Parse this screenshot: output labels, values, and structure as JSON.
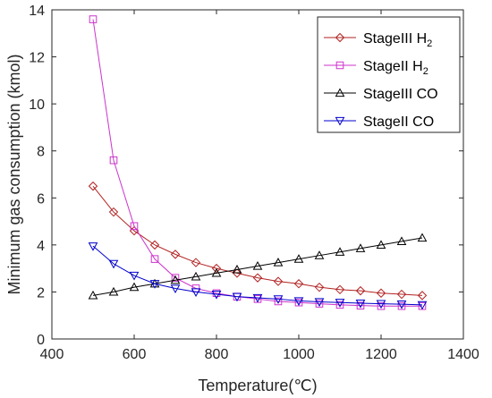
{
  "chart_data": {
    "type": "line",
    "xlabel": "Temperature(℃)",
    "ylabel": "Minimum gas consumption (kmol)",
    "xlim": [
      400,
      1400
    ],
    "ylim": [
      0,
      14
    ],
    "xticks": [
      400,
      600,
      800,
      1000,
      1200,
      1400
    ],
    "yticks": [
      0,
      2,
      4,
      6,
      8,
      10,
      12,
      14
    ],
    "grid": false,
    "legend_position": "top-right",
    "x": [
      500,
      550,
      600,
      650,
      700,
      750,
      800,
      850,
      900,
      950,
      1000,
      1050,
      1100,
      1150,
      1200,
      1250,
      1300
    ],
    "series": [
      {
        "name": "StageIII H",
        "name_subscript": "2",
        "color": "#b22222",
        "marker": "diamond",
        "values": [
          6.5,
          5.4,
          4.6,
          4.0,
          3.6,
          3.25,
          3.0,
          2.8,
          2.6,
          2.45,
          2.35,
          2.2,
          2.1,
          2.05,
          1.95,
          1.9,
          1.85
        ]
      },
      {
        "name": "StageII H",
        "name_subscript": "2",
        "color": "#cc33cc",
        "marker": "square",
        "values": [
          13.6,
          7.6,
          4.8,
          3.4,
          2.6,
          2.15,
          1.95,
          1.8,
          1.7,
          1.6,
          1.55,
          1.5,
          1.45,
          1.42,
          1.4,
          1.4,
          1.4
        ]
      },
      {
        "name": "StageIII CO",
        "color": "#000000",
        "marker": "triangle-up",
        "values": [
          1.85,
          2.0,
          2.2,
          2.35,
          2.5,
          2.65,
          2.8,
          2.95,
          3.1,
          3.25,
          3.4,
          3.55,
          3.7,
          3.85,
          4.0,
          4.15,
          4.3
        ]
      },
      {
        "name": "StageII CO",
        "color": "#0000cc",
        "marker": "triangle-down",
        "values": [
          3.95,
          3.2,
          2.7,
          2.35,
          2.15,
          2.0,
          1.9,
          1.8,
          1.75,
          1.7,
          1.62,
          1.58,
          1.55,
          1.52,
          1.5,
          1.48,
          1.45
        ]
      }
    ]
  }
}
